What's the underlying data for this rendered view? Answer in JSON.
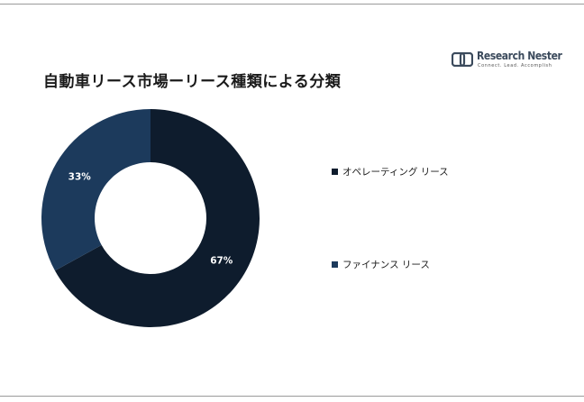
{
  "title": "自動車リース市場ーリース種類による分類",
  "logo": {
    "name": "Research Nester",
    "tagline": "Connect. Lead. Accomplish"
  },
  "chart_data": {
    "type": "pie",
    "donut": true,
    "title": "自動車リース市場ーリース種類による分類",
    "categories": [
      "オペレーティング リース",
      "ファイナンス リース"
    ],
    "values": [
      67,
      33
    ],
    "labels": [
      "67%",
      "33%"
    ],
    "colors": [
      "#0e1c2d",
      "#1c3a5c"
    ],
    "legend_position": "right"
  }
}
